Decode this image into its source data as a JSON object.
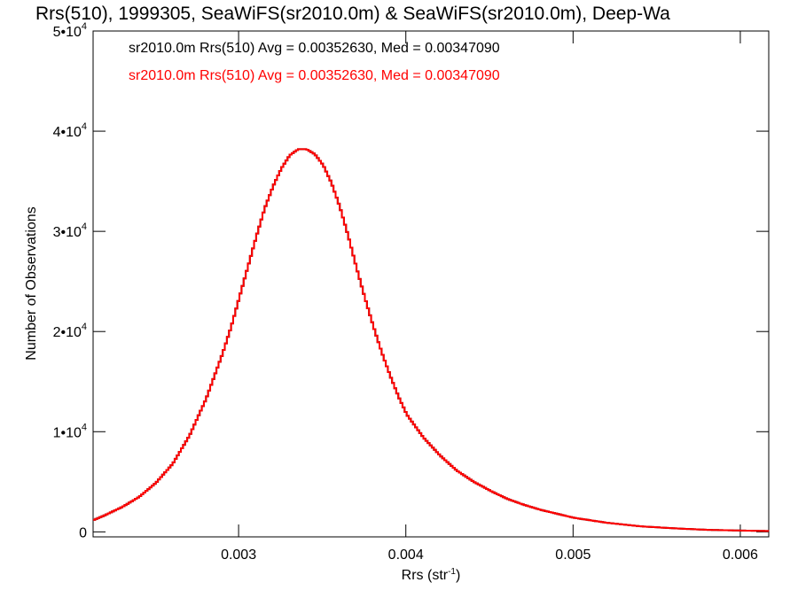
{
  "chart_data": {
    "type": "line",
    "title": "Rrs(510), 1999305, SeaWiFS(sr2010.0m) & SeaWiFS(sr2010.0m), Deep-Wa",
    "xlabel": "Rrs (str",
    "xlabel_sup": "-1",
    "xlabel_end": ")",
    "ylabel": "Number of Observations",
    "xlim": [
      0.00213,
      0.00617
    ],
    "ylim": [
      -500,
      50000
    ],
    "x_ticks": [
      {
        "value": 0.003,
        "label": "0.003"
      },
      {
        "value": 0.004,
        "label": "0.004"
      },
      {
        "value": 0.005,
        "label": "0.005"
      },
      {
        "value": 0.006,
        "label": "0.006"
      }
    ],
    "y_ticks": [
      {
        "value": 0,
        "mantissa": "0",
        "exp": ""
      },
      {
        "value": 10000,
        "mantissa": "1•10",
        "exp": "4"
      },
      {
        "value": 20000,
        "mantissa": "2•10",
        "exp": "4"
      },
      {
        "value": 30000,
        "mantissa": "3•10",
        "exp": "4"
      },
      {
        "value": 40000,
        "mantissa": "4•10",
        "exp": "4"
      },
      {
        "value": 50000,
        "mantissa": "5•10",
        "exp": "4"
      }
    ],
    "legend_placement": "top-left",
    "grid": false,
    "series": [
      {
        "label": "sr2010.0m Rrs(510) Avg = 0.00352630, Med = 0.00347090",
        "color": "#000000",
        "style": "step",
        "x": [
          0.00213,
          0.0022,
          0.0023,
          0.0024,
          0.0025,
          0.0026,
          0.0027,
          0.0028,
          0.0029,
          0.00295,
          0.003,
          0.00305,
          0.0031,
          0.00315,
          0.0032,
          0.00325,
          0.0033,
          0.00335,
          0.0034,
          0.00345,
          0.0035,
          0.00355,
          0.0036,
          0.00365,
          0.0037,
          0.00375,
          0.0038,
          0.00385,
          0.0039,
          0.00395,
          0.004,
          0.0041,
          0.0042,
          0.0043,
          0.0044,
          0.0045,
          0.0046,
          0.0047,
          0.0048,
          0.0049,
          0.005,
          0.0052,
          0.0054,
          0.0056,
          0.0058,
          0.006,
          0.00617
        ],
        "y": [
          1200,
          1700,
          2500,
          3500,
          4900,
          6800,
          9600,
          13300,
          17900,
          20500,
          23500,
          26500,
          29500,
          32300,
          34500,
          36300,
          37600,
          38200,
          38200,
          37700,
          36600,
          34800,
          32400,
          29500,
          26300,
          23300,
          20500,
          17900,
          15600,
          13500,
          11700,
          9400,
          7600,
          6100,
          5000,
          4100,
          3300,
          2700,
          2200,
          1800,
          1400,
          900,
          550,
          350,
          200,
          130,
          80
        ]
      },
      {
        "label": "sr2010.0m Rrs(510) Avg = 0.00352630, Med = 0.00347090",
        "color": "#ff0000",
        "style": "step",
        "x": [
          0.00213,
          0.0022,
          0.0023,
          0.0024,
          0.0025,
          0.0026,
          0.0027,
          0.0028,
          0.0029,
          0.00295,
          0.003,
          0.00305,
          0.0031,
          0.00315,
          0.0032,
          0.00325,
          0.0033,
          0.00335,
          0.0034,
          0.00345,
          0.0035,
          0.00355,
          0.0036,
          0.00365,
          0.0037,
          0.00375,
          0.0038,
          0.00385,
          0.0039,
          0.00395,
          0.004,
          0.0041,
          0.0042,
          0.0043,
          0.0044,
          0.0045,
          0.0046,
          0.0047,
          0.0048,
          0.0049,
          0.005,
          0.0052,
          0.0054,
          0.0056,
          0.0058,
          0.006,
          0.00617
        ],
        "y": [
          1200,
          1700,
          2500,
          3500,
          4900,
          6800,
          9600,
          13300,
          17900,
          20500,
          23500,
          26500,
          29500,
          32300,
          34500,
          36300,
          37600,
          38200,
          38200,
          37700,
          36600,
          34800,
          32400,
          29500,
          26300,
          23300,
          20500,
          17900,
          15600,
          13500,
          11700,
          9400,
          7600,
          6100,
          5000,
          4100,
          3300,
          2700,
          2200,
          1800,
          1400,
          900,
          550,
          350,
          200,
          130,
          80
        ]
      }
    ]
  }
}
